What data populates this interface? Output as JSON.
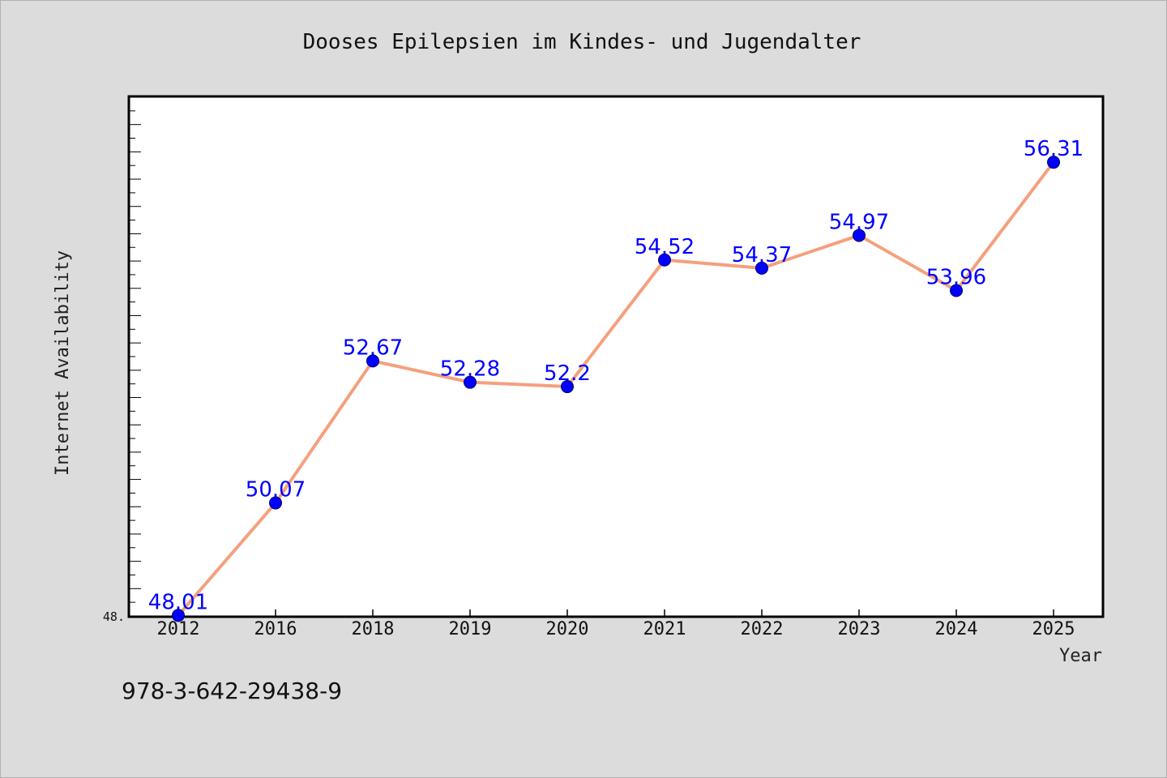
{
  "chart_data": {
    "type": "line",
    "title": "Dooses Epilepsien im Kindes- und Jugendalter",
    "xlabel": "Year",
    "ylabel": "Internet Availability",
    "categories": [
      "2012",
      "2016",
      "2018",
      "2019",
      "2020",
      "2021",
      "2022",
      "2023",
      "2024",
      "2025"
    ],
    "series": [
      {
        "values": [
          48.01,
          50.07,
          52.67,
          52.28,
          52.2,
          54.52,
          54.37,
          54.97,
          53.96,
          56.31
        ],
        "labels": [
          "48.01",
          "50.07",
          "52.67",
          "52.28",
          "52.2",
          "54.52",
          "54.37",
          "54.97",
          "53.96",
          "56.31"
        ]
      }
    ],
    "ylim": [
      48.0,
      57.5
    ],
    "ytick_label": "48.",
    "grid": false,
    "line_color": "#f4a07e",
    "marker_color": "#0000ff",
    "label_color": "#0000ff"
  },
  "footer": {
    "isbn": "978-3-642-29438-9"
  }
}
